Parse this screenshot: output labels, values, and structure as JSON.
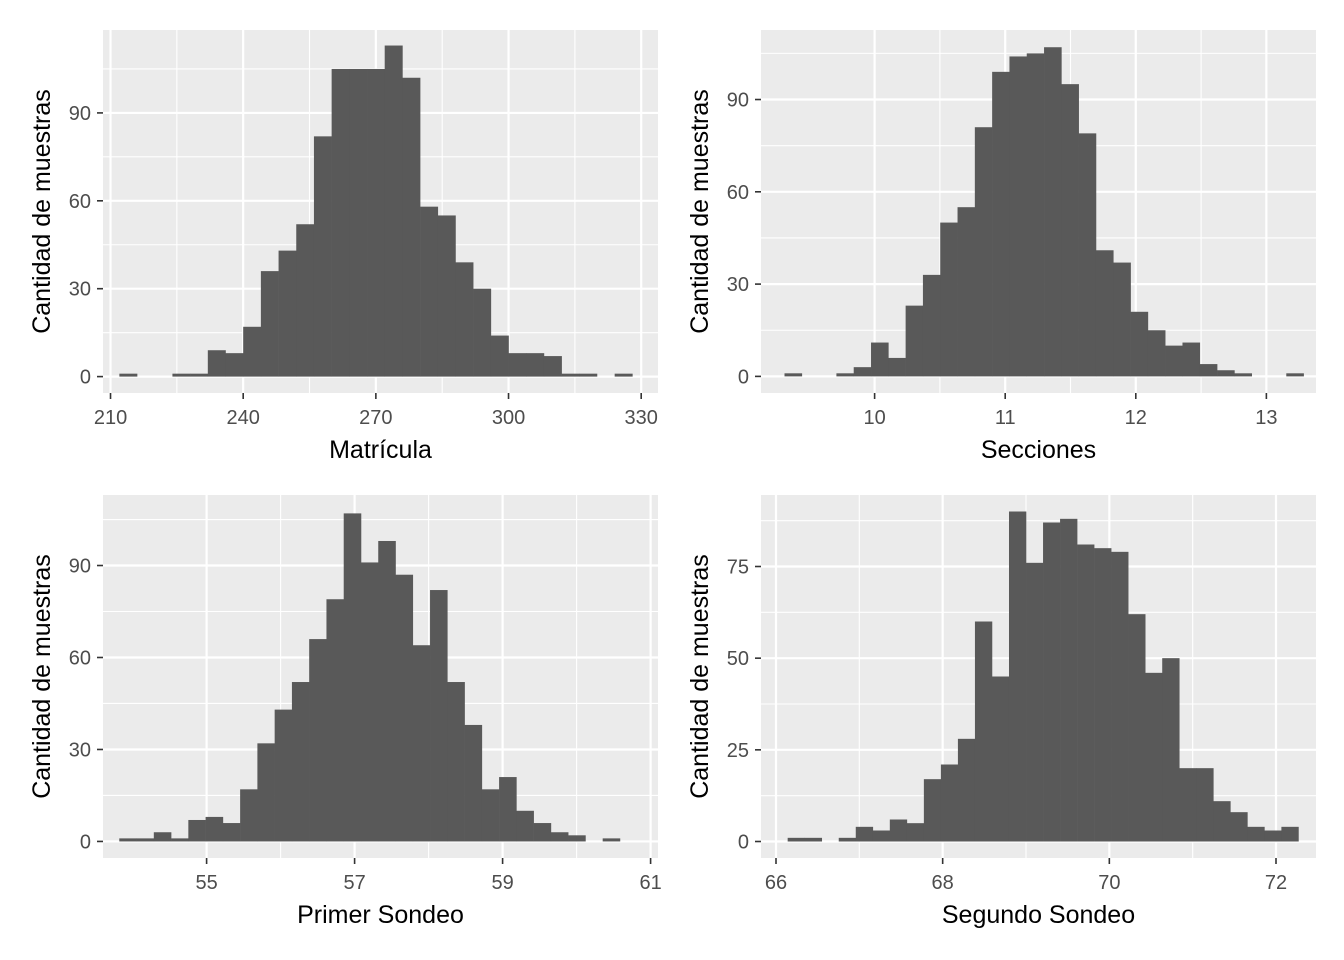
{
  "chart_data": [
    {
      "type": "bar",
      "xlabel": "Matrícula",
      "ylabel": "Cantidad de muestras",
      "xlim": [
        208.3,
        333.8
      ],
      "ylim": [
        -5.6,
        118.3
      ],
      "xticks": [
        210,
        240,
        270,
        300,
        330
      ],
      "xtick_labels": [
        "210",
        "240",
        "270",
        "300",
        "330"
      ],
      "yticks": [
        0,
        30,
        60,
        90
      ],
      "ytick_labels": [
        "0",
        "30",
        "60",
        "90"
      ],
      "bin_start": 212.0,
      "bin_width": 4.0,
      "values": [
        1,
        0,
        0,
        1,
        1,
        9,
        8,
        17,
        36,
        43,
        52,
        82,
        105,
        105,
        105,
        113,
        102,
        58,
        55,
        39,
        30,
        14,
        8,
        8,
        7,
        1,
        1,
        0,
        1
      ]
    },
    {
      "type": "bar",
      "xlabel": "Secciones",
      "ylabel": "Cantidad de muestras",
      "xlim": [
        9.13,
        13.38
      ],
      "ylim": [
        -5.4,
        112.6
      ],
      "xticks": [
        10,
        11,
        12,
        13
      ],
      "xtick_labels": [
        "10",
        "11",
        "12",
        "13"
      ],
      "yticks": [
        0,
        30,
        60,
        90
      ],
      "ytick_labels": [
        "0",
        "30",
        "60",
        "90"
      ],
      "bin_start": 9.31,
      "bin_width": 0.1325,
      "values": [
        1,
        0,
        0,
        1,
        3,
        11,
        6,
        23,
        33,
        50,
        55,
        81,
        99,
        104,
        105,
        107,
        95,
        79,
        41,
        37,
        21,
        15,
        10,
        11,
        4,
        2,
        1,
        0,
        0,
        1
      ]
    },
    {
      "type": "bar",
      "xlabel": "Primer Sondeo",
      "ylabel": "Cantidad de muestras",
      "xlim": [
        53.6,
        61.1
      ],
      "ylim": [
        -5.4,
        113.0
      ],
      "xticks": [
        55,
        57,
        59,
        61
      ],
      "xtick_labels": [
        "55",
        "57",
        "59",
        "61"
      ],
      "yticks": [
        0,
        30,
        60,
        90
      ],
      "ytick_labels": [
        "0",
        "30",
        "60",
        "90"
      ],
      "bin_start": 53.82,
      "bin_width": 0.2333,
      "values": [
        1,
        1,
        3,
        1,
        7,
        8,
        6,
        17,
        32,
        43,
        52,
        66,
        79,
        107,
        91,
        98,
        87,
        64,
        82,
        52,
        38,
        17,
        21,
        10,
        6,
        3,
        2,
        0,
        1
      ]
    },
    {
      "type": "bar",
      "xlabel": "Segundo Sondeo",
      "ylabel": "Cantidad de muestras",
      "xlim": [
        65.82,
        72.48
      ],
      "ylim": [
        -4.5,
        94.5
      ],
      "xticks": [
        66,
        68,
        70,
        72
      ],
      "xtick_labels": [
        "66",
        "68",
        "70",
        "72"
      ],
      "yticks": [
        0,
        25,
        50,
        75
      ],
      "ytick_labels": [
        "0",
        "25",
        "50",
        "75"
      ],
      "bin_start": 66.14,
      "bin_width": 0.2043,
      "values": [
        1,
        1,
        0,
        1,
        4,
        3,
        6,
        5,
        17,
        21,
        28,
        60,
        45,
        90,
        76,
        87,
        88,
        81,
        80,
        79,
        62,
        46,
        50,
        20,
        20,
        11,
        8,
        4,
        3,
        4
      ]
    }
  ]
}
